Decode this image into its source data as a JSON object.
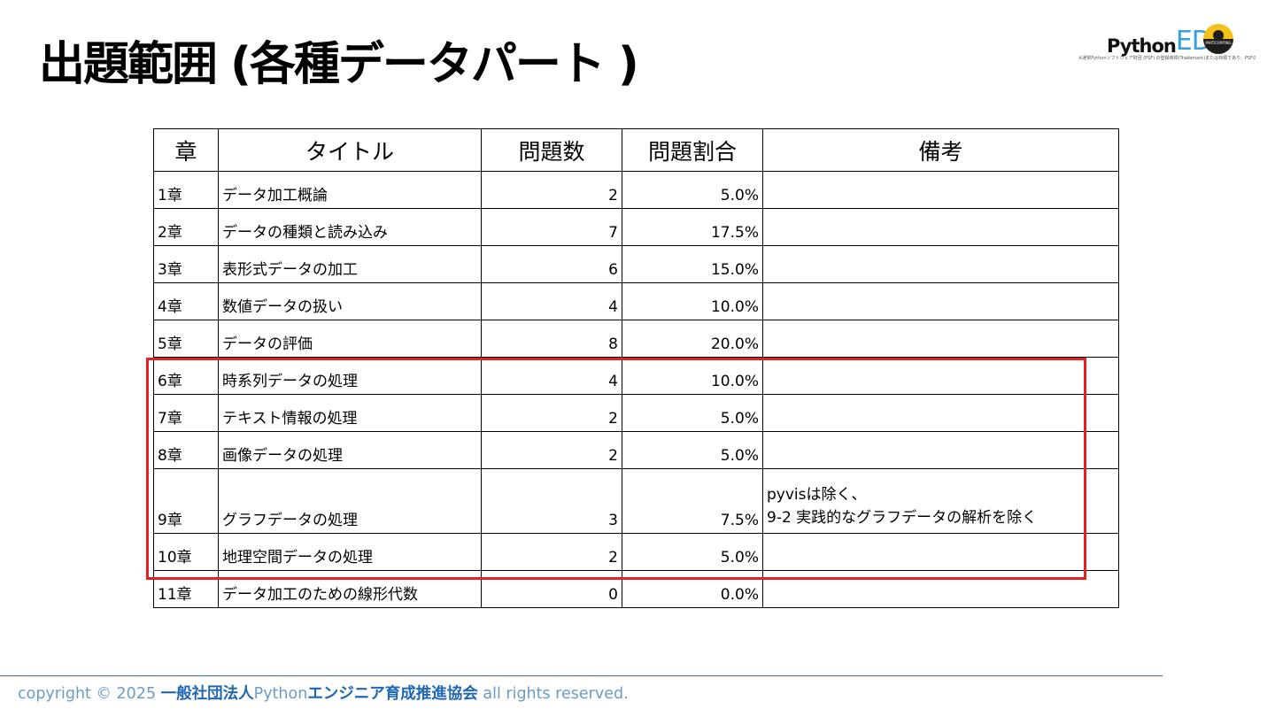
{
  "title": "出題範囲 (各種データパート )",
  "logo": {
    "python": "Python",
    "ed": "ED",
    "badge": "PARTICIPATING",
    "caption": "※通常Pythonソフトウェア財団 (PSF) の登録商標(Trademark)または商標であり、PSFの許可を得て使用しています。"
  },
  "table": {
    "headers": [
      "章",
      "タイトル",
      "問題数",
      "問題割合",
      "備考"
    ],
    "rows": [
      {
        "chapter": "1章",
        "title": "データ加工概論",
        "questions": "2",
        "ratio": "5.0%",
        "note": [
          "",
          ""
        ]
      },
      {
        "chapter": "2章",
        "title": "データの種類と読み込み",
        "questions": "7",
        "ratio": "17.5%",
        "note": [
          "",
          ""
        ]
      },
      {
        "chapter": "3章",
        "title": "表形式データの加工",
        "questions": "6",
        "ratio": "15.0%",
        "note": [
          "",
          ""
        ]
      },
      {
        "chapter": "4章",
        "title": "数値データの扱い",
        "questions": "4",
        "ratio": "10.0%",
        "note": [
          "",
          ""
        ]
      },
      {
        "chapter": "5章",
        "title": "データの評価",
        "questions": "8",
        "ratio": "20.0%",
        "note": [
          "",
          ""
        ]
      },
      {
        "chapter": "6章",
        "title": "時系列データの処理",
        "questions": "4",
        "ratio": "10.0%",
        "note": [
          "",
          ""
        ]
      },
      {
        "chapter": "7章",
        "title": "テキスト情報の処理",
        "questions": "2",
        "ratio": "5.0%",
        "note": [
          "",
          ""
        ]
      },
      {
        "chapter": "8章",
        "title": "画像データの処理",
        "questions": "2",
        "ratio": "5.0%",
        "note": [
          "",
          ""
        ]
      },
      {
        "chapter": "9章",
        "title": "グラフデータの処理",
        "questions": "3",
        "ratio": "7.5%",
        "note": [
          "pyvisは除く、",
          "9-2 実践的なグラフデータの解析を除く"
        ]
      },
      {
        "chapter": "10章",
        "title": "地理空間データの処理",
        "questions": "2",
        "ratio": "5.0%",
        "note": [
          "",
          ""
        ]
      },
      {
        "chapter": "11章",
        "title": "データ加工のための線形代数",
        "questions": "0",
        "ratio": "0.0%",
        "note": [
          "",
          ""
        ]
      }
    ]
  },
  "footer": {
    "prefix": "copyright © 2025 ",
    "org1": "一般社団法人",
    "python": "Python",
    "org2": "エンジニア育成推進協会",
    "suffix": " all rights reserved."
  },
  "colors": {
    "highlight": "#e32121",
    "accent": "#3aa0dc",
    "footer_org": "#1e67b4"
  }
}
